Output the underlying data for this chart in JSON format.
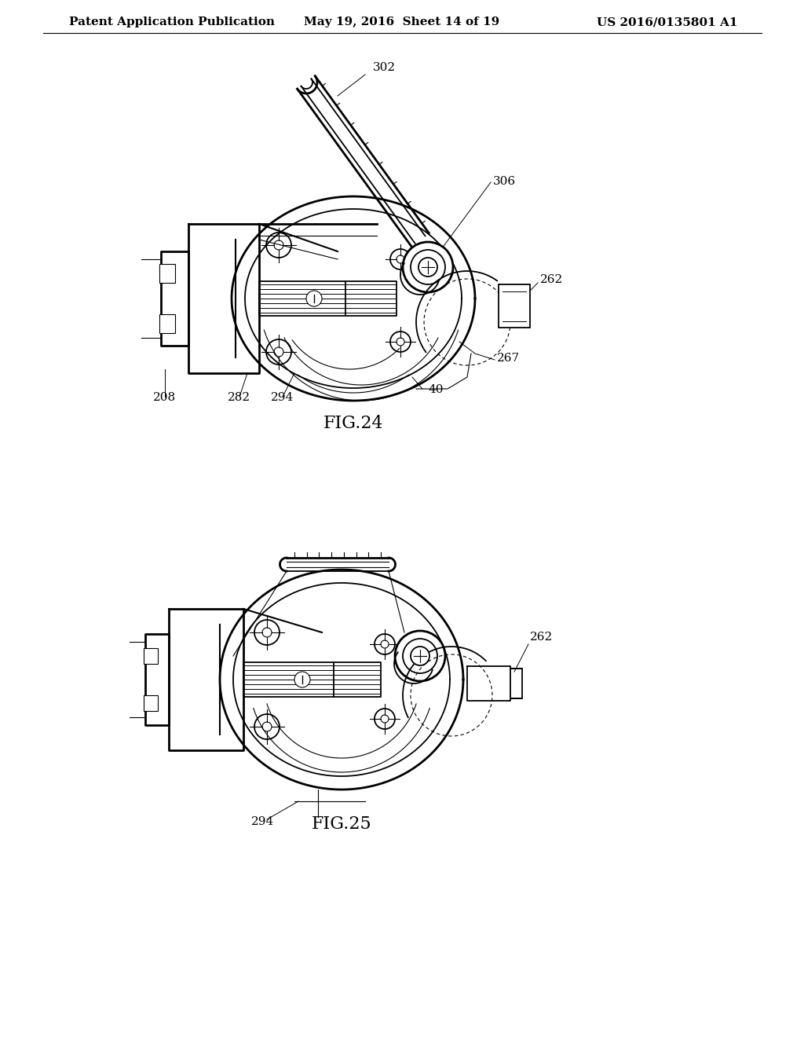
{
  "background_color": "#ffffff",
  "header_left": "Patent Application Publication",
  "header_center": "May 19, 2016  Sheet 14 of 19",
  "header_right": "US 2016/0135801 A1",
  "fig24_label": "FIG.24",
  "fig25_label": "FIG.25",
  "line_color": "#000000",
  "text_color": "#000000",
  "header_font_size": 11,
  "label_font_size": 16,
  "ref_font_size": 11
}
